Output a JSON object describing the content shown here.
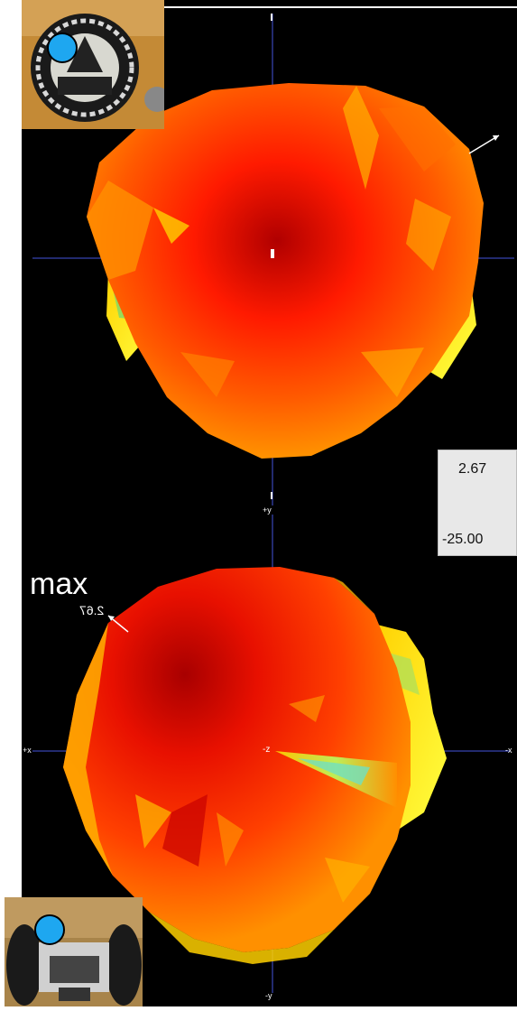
{
  "figure": {
    "background": "#000000",
    "top_view": {
      "axis_labels": {
        "top": "",
        "left": "",
        "right": "",
        "center": ""
      },
      "photo_description": "device-top-photo"
    },
    "bottom_view": {
      "axis_labels": {
        "top": "+y",
        "left": "+x",
        "right": "-x",
        "bottom": "-y",
        "center": "-z"
      },
      "photo_description": "device-front-photo"
    },
    "max_label": "max",
    "max_value_label": "2.67"
  },
  "legend": {
    "max": "2.67",
    "min": "-25.00",
    "colors": [
      "#0000ff",
      "#00c8ff",
      "#c8ffff",
      "#00ff66",
      "#ffff00",
      "#ff8000",
      "#ff0000"
    ]
  },
  "colors": {
    "axis": "#4455dd",
    "marker": "#1ea7f0",
    "surface_high": "#ff1a00",
    "surface_mid": "#ff7a00",
    "surface_low": "#ffe000"
  }
}
